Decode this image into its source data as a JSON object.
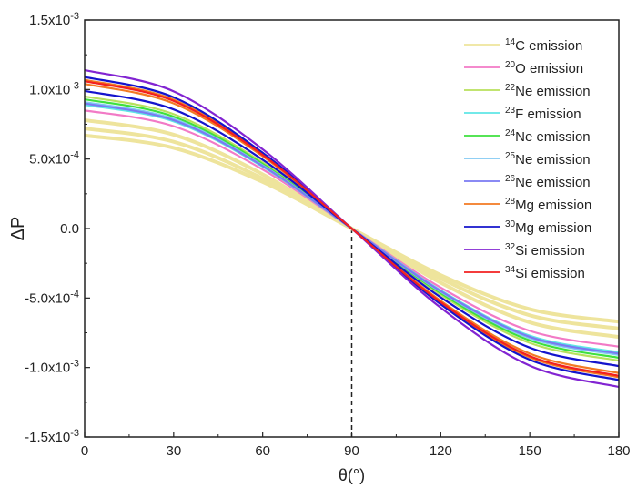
{
  "chart_data": {
    "type": "line",
    "xlabel": "θ(°)",
    "ylabel": "ΔP",
    "xlim": [
      0,
      180
    ],
    "ylim": [
      -0.0015,
      0.0015
    ],
    "x_ticks": [
      0,
      30,
      60,
      90,
      120,
      150,
      180
    ],
    "x_tick_labels": [
      "0",
      "30",
      "60",
      "90",
      "120",
      "150",
      "180"
    ],
    "y_ticks": [
      0.0015,
      0.001,
      0.0005,
      0,
      -0.0005,
      -0.001,
      -0.0015
    ],
    "y_tick_labels": [
      {
        "m": "1.5x10",
        "e": "-3"
      },
      {
        "m": "1.0x10",
        "e": "-3"
      },
      {
        "m": "5.0x10",
        "e": "-4"
      },
      {
        "m": "0.0",
        "e": ""
      },
      {
        "m": "-5.0x10",
        "e": "-4"
      },
      {
        "m": "-1.0x10",
        "e": "-3"
      },
      {
        "m": "-1.5x10",
        "e": "-3"
      }
    ],
    "reference_line": {
      "x": 90,
      "style": "dashed"
    },
    "legend_position": "top-right",
    "x": [
      0,
      30,
      60,
      90,
      120,
      150,
      180
    ],
    "series": [
      {
        "sup": "14",
        "name": "C emission",
        "color": "#eee49c",
        "curves": [
          [
            0.00078,
            0.000675,
            0.00039,
            0,
            -0.00039,
            -0.000675,
            -0.00078
          ],
          [
            0.00072,
            0.000624,
            0.00036,
            0,
            -0.00036,
            -0.000624,
            -0.00072
          ],
          [
            0.00067,
            0.00058,
            0.000335,
            0,
            -0.000335,
            -0.00058,
            -0.00067
          ]
        ]
      },
      {
        "sup": "20",
        "name": "O emission",
        "color": "#f27ac6",
        "curves": [
          [
            0.00085,
            0.000736,
            0.000425,
            0,
            -0.000425,
            -0.000736,
            -0.00085
          ]
        ]
      },
      {
        "sup": "22",
        "name": "Ne emission",
        "color": "#b8e05c",
        "curves": [
          [
            0.00095,
            0.000823,
            0.000475,
            0,
            -0.000475,
            -0.000823,
            -0.00095
          ]
        ]
      },
      {
        "sup": "23",
        "name": "F emission",
        "color": "#5ee6e6",
        "curves": [
          [
            0.00089,
            0.000771,
            0.000445,
            0,
            -0.000445,
            -0.000771,
            -0.00089
          ]
        ]
      },
      {
        "sup": "24",
        "name": "Ne emission",
        "color": "#3ee03e",
        "curves": [
          [
            0.00093,
            0.000805,
            0.000465,
            0,
            -0.000465,
            -0.000805,
            -0.00093
          ]
        ]
      },
      {
        "sup": "25",
        "name": "Ne emission",
        "color": "#80c8f2",
        "curves": [
          [
            0.00091,
            0.000788,
            0.000455,
            0,
            -0.000455,
            -0.000788,
            -0.00091
          ]
        ]
      },
      {
        "sup": "26",
        "name": "Ne emission",
        "color": "#7a7af2",
        "curves": [
          [
            0.0009,
            0.000779,
            0.00045,
            0,
            -0.00045,
            -0.000779,
            -0.0009
          ]
        ]
      },
      {
        "sup": "28",
        "name": "Mg emission",
        "color": "#f27a22",
        "curves": [
          [
            0.00104,
            0.0009,
            0.00052,
            0,
            -0.00052,
            -0.0009,
            -0.00104
          ],
          [
            0.00107,
            0.000927,
            0.000535,
            0,
            -0.000535,
            -0.000927,
            -0.00107
          ]
        ]
      },
      {
        "sup": "30",
        "name": "Mg emission",
        "color": "#1414cc",
        "curves": [
          [
            0.00099,
            0.000857,
            0.000495,
            0,
            -0.000495,
            -0.000857,
            -0.00099
          ],
          [
            0.00109,
            0.000944,
            0.000545,
            0,
            -0.000545,
            -0.000944,
            -0.00109
          ]
        ]
      },
      {
        "sup": "32",
        "name": "Si emission",
        "color": "#8224d2",
        "curves": [
          [
            0.00114,
            0.000987,
            0.00057,
            0,
            -0.00057,
            -0.000987,
            -0.00114
          ]
        ]
      },
      {
        "sup": "34",
        "name": "Si emission",
        "color": "#f22020",
        "curves": [
          [
            0.00106,
            0.000918,
            0.00053,
            0,
            -0.00053,
            -0.000918,
            -0.00106
          ]
        ]
      }
    ]
  }
}
